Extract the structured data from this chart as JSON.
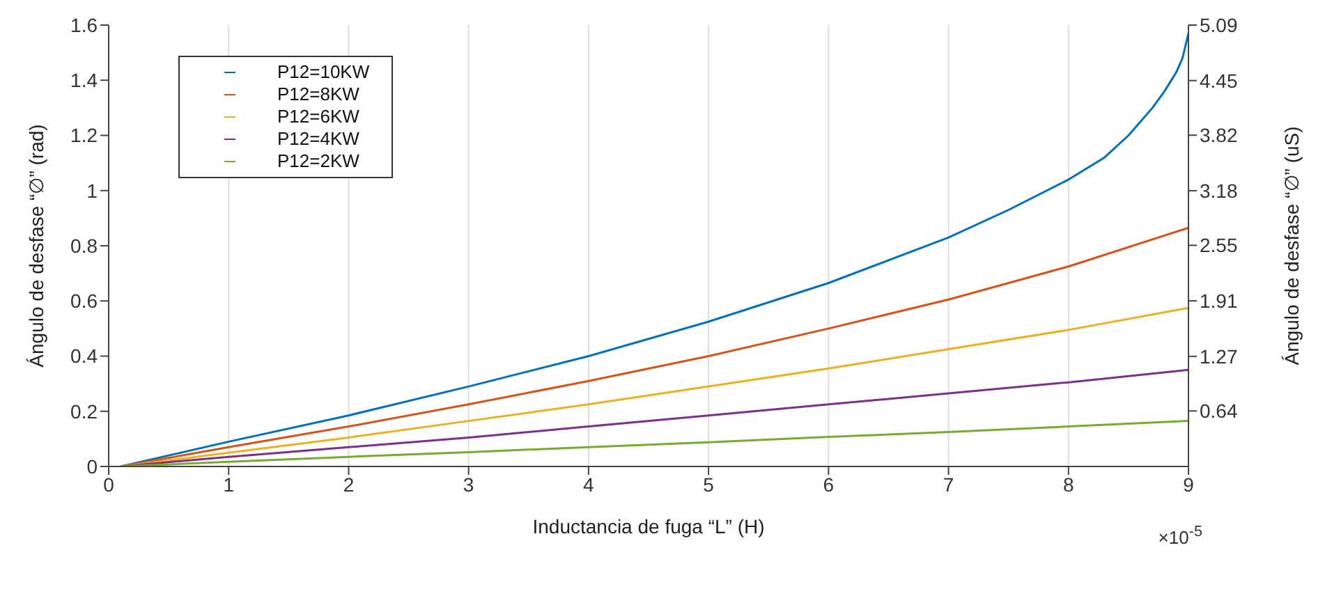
{
  "chart_data": {
    "type": "line",
    "xlabel": "Inductancia de fuga “L” (H)",
    "ylabel": "Ángulo de desfase “∅” (rad)",
    "y2label": "Ángulo de desfase “∅” (uS)",
    "annotations": [
      "×10$^{-5}$"
    ],
    "x": [
      0.1,
      1,
      2,
      3,
      4,
      5,
      6,
      7,
      8,
      9
    ],
    "series": [
      {
        "name": "P12=10KW",
        "color": "#0072bd",
        "x": [
          0.1,
          1,
          2,
          3,
          4,
          5,
          6,
          7,
          7.5,
          8,
          8.3,
          8.5,
          8.7,
          8.8,
          8.9,
          8.95,
          9
        ],
        "values": [
          0,
          0.09,
          0.185,
          0.29,
          0.4,
          0.525,
          0.665,
          0.83,
          0.93,
          1.04,
          1.12,
          1.2,
          1.3,
          1.36,
          1.43,
          1.48,
          1.57
        ]
      },
      {
        "name": "P12=8KW",
        "color": "#d95319",
        "values": [
          0,
          0.07,
          0.145,
          0.225,
          0.31,
          0.4,
          0.5,
          0.605,
          0.725,
          0.865
        ]
      },
      {
        "name": "P12=6KW",
        "color": "#edb120",
        "values": [
          0,
          0.05,
          0.105,
          0.165,
          0.225,
          0.29,
          0.355,
          0.425,
          0.495,
          0.575
        ]
      },
      {
        "name": "P12=4KW",
        "color": "#7e2f8e",
        "values": [
          0,
          0.035,
          0.07,
          0.105,
          0.145,
          0.185,
          0.225,
          0.265,
          0.305,
          0.35
        ]
      },
      {
        "name": "P12=2KW",
        "color": "#77ac30",
        "values": [
          0,
          0.017,
          0.035,
          0.052,
          0.07,
          0.088,
          0.107,
          0.125,
          0.145,
          0.165
        ]
      }
    ],
    "xlim": [
      0,
      9
    ],
    "xticks": [
      0,
      1,
      2,
      3,
      4,
      5,
      6,
      7,
      8,
      9
    ],
    "ylim": [
      0,
      1.6
    ],
    "yticks": [
      0,
      0.2,
      0.4,
      0.6,
      0.8,
      1,
      1.2,
      1.4,
      1.6
    ],
    "y2lim": [
      0,
      5.09
    ],
    "y2ticks": [
      0.64,
      1.27,
      1.91,
      2.55,
      3.18,
      3.82,
      4.45,
      5.09
    ],
    "grid": true,
    "legend": "top left",
    "line_style": "solid"
  }
}
